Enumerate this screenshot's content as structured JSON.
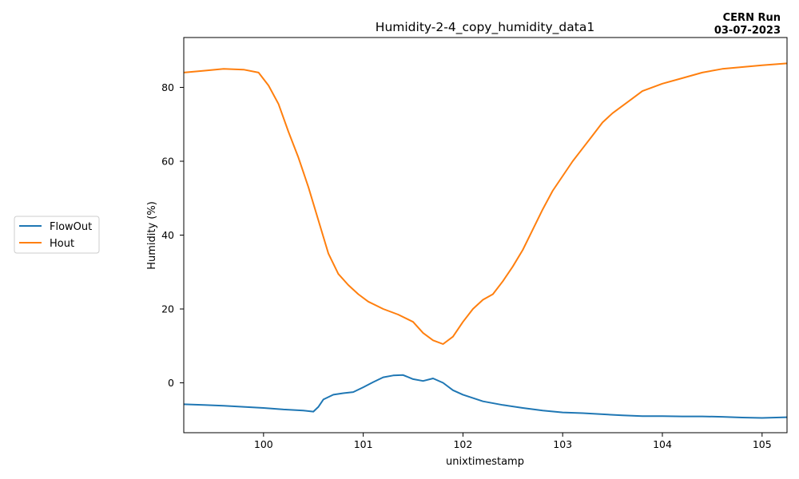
{
  "chart_data": {
    "type": "line",
    "title": "Humidity-2-4_copy_humidity_data1",
    "xlabel": "unixtimestamp",
    "ylabel": "Humidity (%)",
    "annotation": [
      "CERN Run",
      "03-07-2023"
    ],
    "xlim": [
      99.2,
      105.25
    ],
    "ylim": [
      -13.5,
      93.5
    ],
    "xticks": [
      100,
      101,
      102,
      103,
      104,
      105
    ],
    "yticks": [
      0,
      20,
      40,
      60,
      80
    ],
    "grid": false,
    "legend": "left-outside",
    "series": [
      {
        "name": "FlowOut",
        "color": "#1f77b4",
        "x": [
          99.2,
          99.4,
          99.6,
          99.8,
          100.0,
          100.2,
          100.4,
          100.5,
          100.55,
          100.6,
          100.7,
          100.8,
          100.9,
          101.0,
          101.1,
          101.2,
          101.3,
          101.4,
          101.5,
          101.6,
          101.7,
          101.8,
          101.9,
          102.0,
          102.2,
          102.4,
          102.6,
          102.8,
          103.0,
          103.2,
          103.4,
          103.6,
          103.8,
          104.0,
          104.2,
          104.4,
          104.6,
          104.8,
          105.0,
          105.25
        ],
        "values": [
          -5.8,
          -6.0,
          -6.2,
          -6.5,
          -6.8,
          -7.2,
          -7.5,
          -7.8,
          -6.5,
          -4.5,
          -3.2,
          -2.8,
          -2.5,
          -1.2,
          0.2,
          1.5,
          2.0,
          2.1,
          1.0,
          0.5,
          1.2,
          0.0,
          -2.0,
          -3.2,
          -5.0,
          -6.0,
          -6.8,
          -7.5,
          -8.0,
          -8.2,
          -8.5,
          -8.8,
          -9.0,
          -9.0,
          -9.1,
          -9.1,
          -9.2,
          -9.4,
          -9.5,
          -9.3
        ]
      },
      {
        "name": "Hout",
        "color": "#ff7f0e",
        "x": [
          99.2,
          99.4,
          99.6,
          99.8,
          99.95,
          100.05,
          100.15,
          100.25,
          100.35,
          100.45,
          100.55,
          100.65,
          100.75,
          100.85,
          100.95,
          101.05,
          101.2,
          101.35,
          101.5,
          101.6,
          101.7,
          101.8,
          101.9,
          102.0,
          102.1,
          102.2,
          102.3,
          102.4,
          102.5,
          102.6,
          102.7,
          102.8,
          102.9,
          103.0,
          103.1,
          103.2,
          103.3,
          103.4,
          103.5,
          103.6,
          103.7,
          103.8,
          104.0,
          104.2,
          104.4,
          104.6,
          104.8,
          105.0,
          105.25
        ],
        "values": [
          84.0,
          84.5,
          85.0,
          84.8,
          84.0,
          80.5,
          75.5,
          68.0,
          61.0,
          53.0,
          44.0,
          35.0,
          29.5,
          26.5,
          24.0,
          22.0,
          20.0,
          18.5,
          16.5,
          13.5,
          11.5,
          10.5,
          12.5,
          16.5,
          20.0,
          22.5,
          24.0,
          27.5,
          31.5,
          36.0,
          41.5,
          47.0,
          52.0,
          56.0,
          60.0,
          63.5,
          67.0,
          70.5,
          73.0,
          75.0,
          77.0,
          79.0,
          81.0,
          82.5,
          84.0,
          85.0,
          85.5,
          86.0,
          86.5
        ]
      }
    ]
  }
}
